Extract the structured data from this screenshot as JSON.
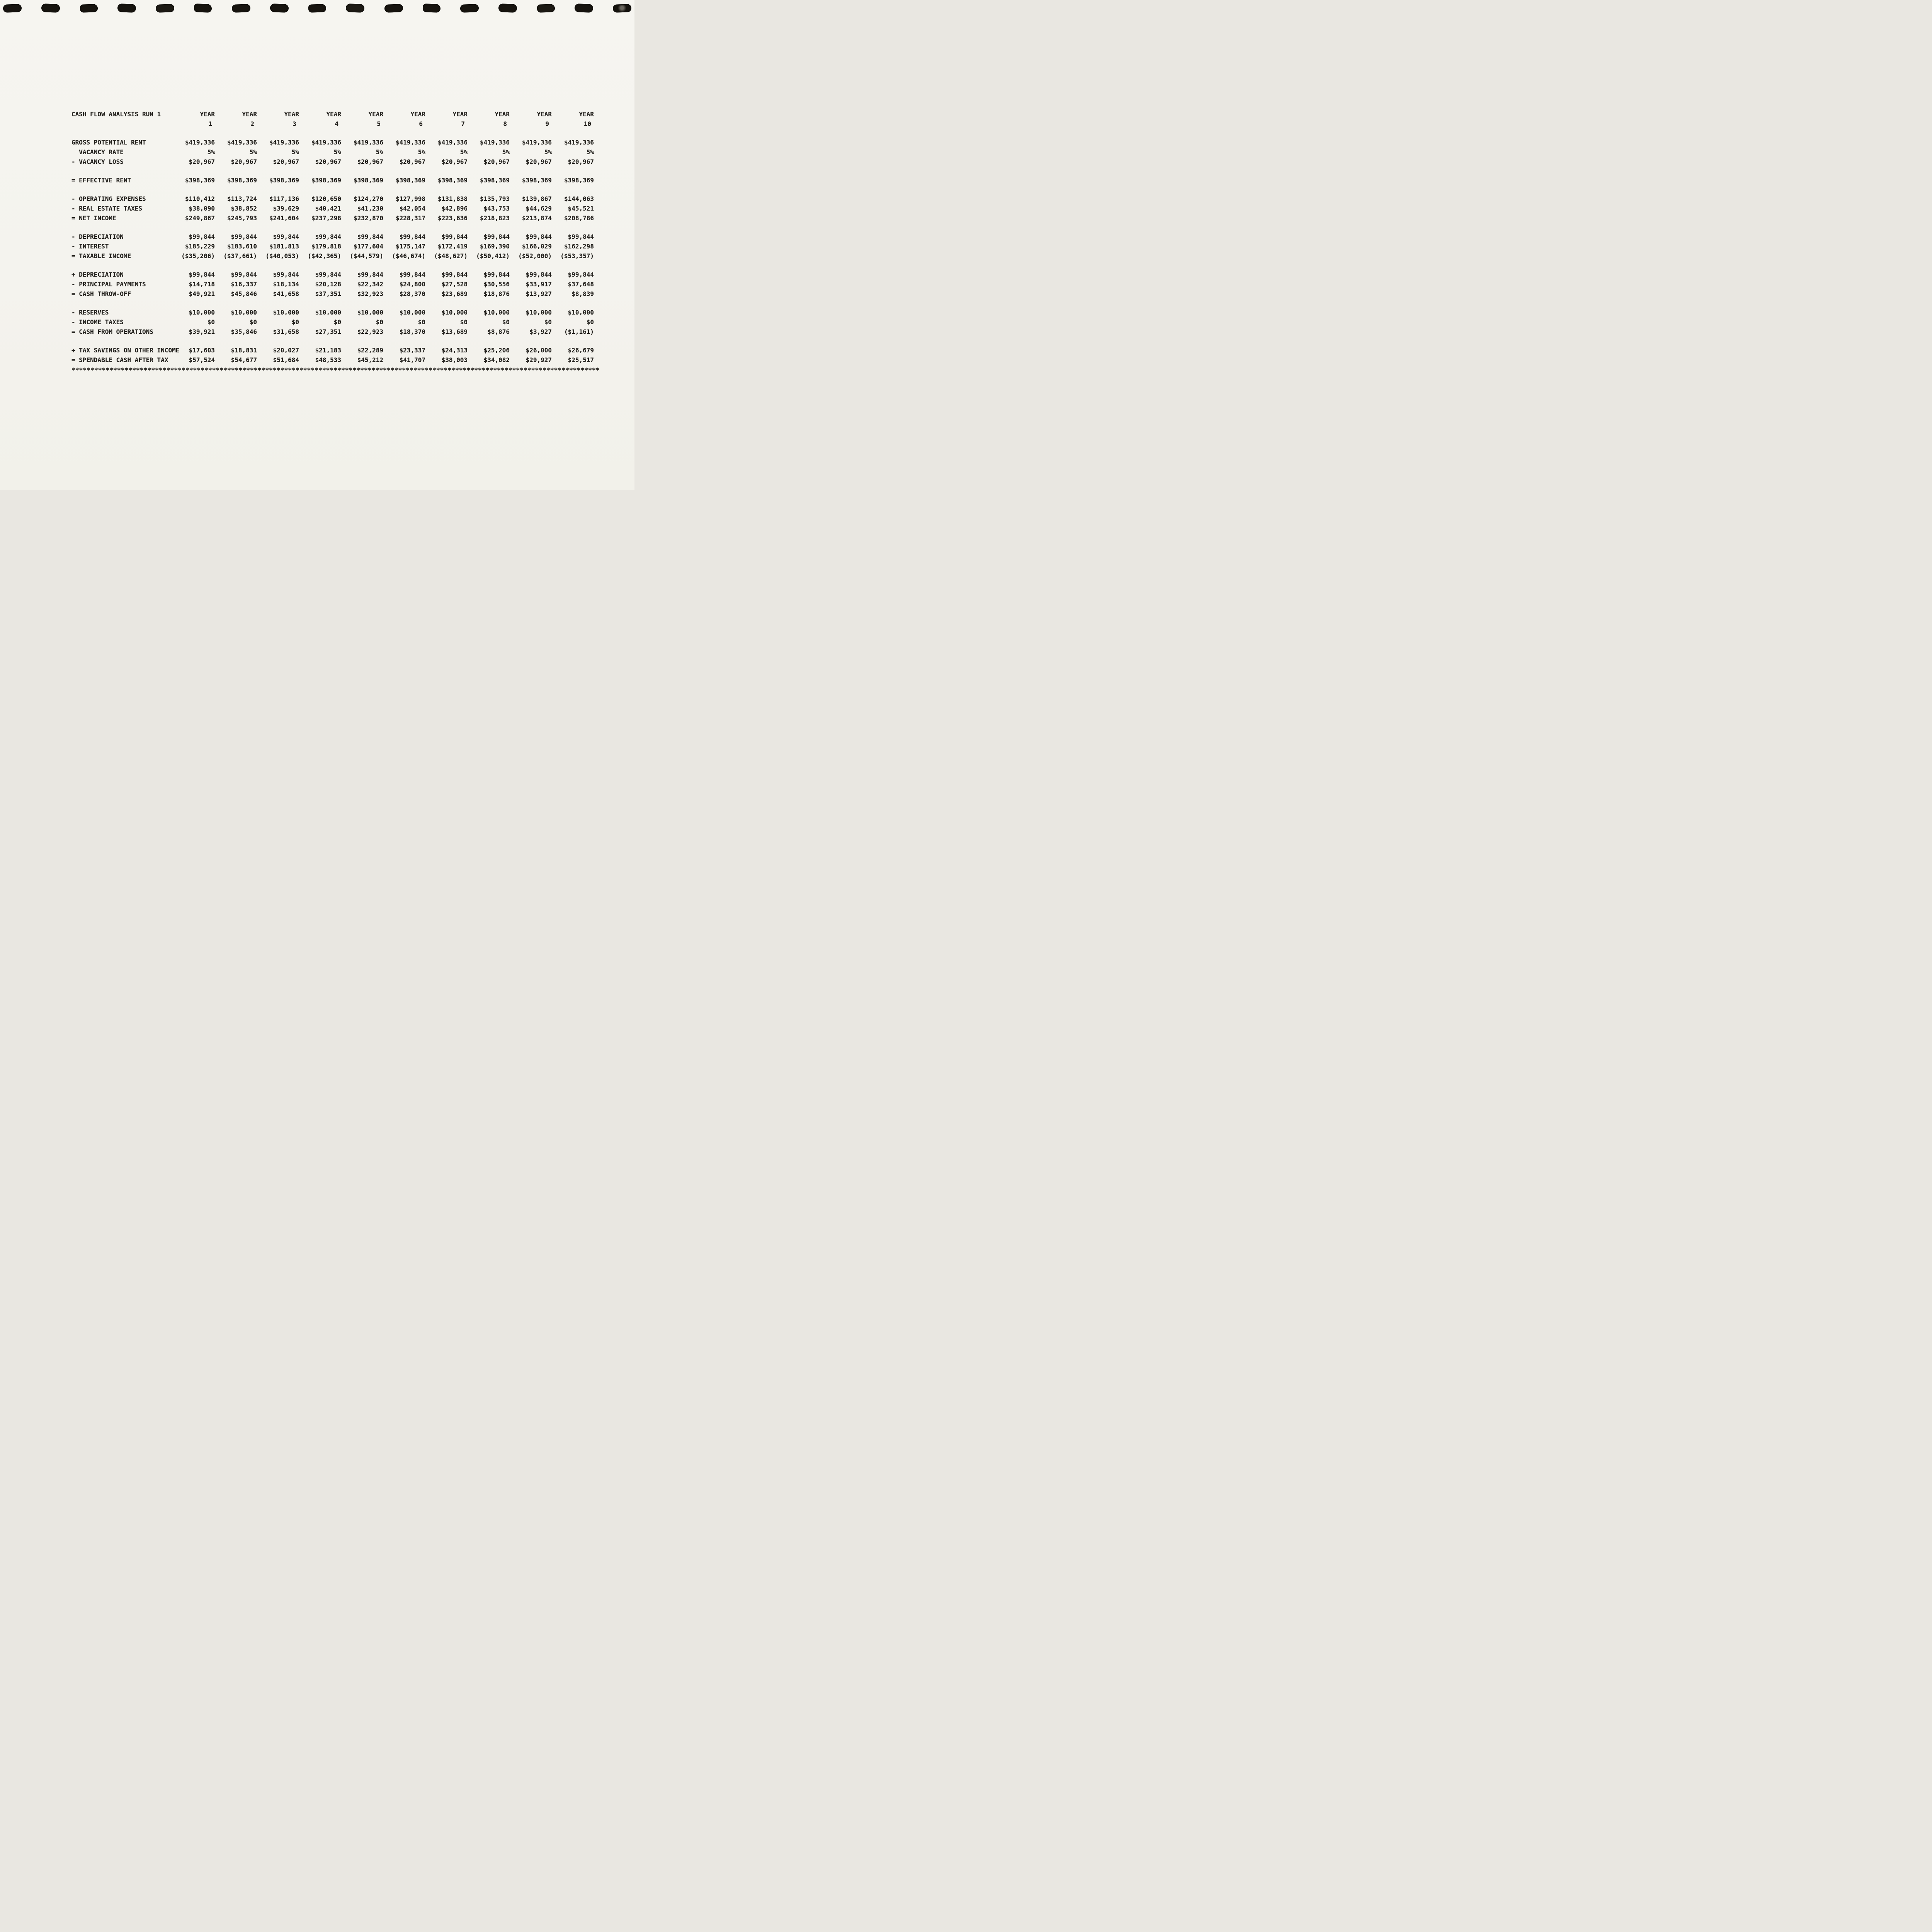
{
  "report": {
    "title": "CASH FLOW ANALYSIS RUN 1",
    "year_label": "YEAR",
    "years": [
      "1",
      "2",
      "3",
      "4",
      "5",
      "6",
      "7",
      "8",
      "9",
      "10"
    ],
    "rows": [
      {
        "label": "GROSS POTENTIAL RENT",
        "gap": true,
        "values": [
          "$419,336",
          "$419,336",
          "$419,336",
          "$419,336",
          "$419,336",
          "$419,336",
          "$419,336",
          "$419,336",
          "$419,336",
          "$419,336"
        ]
      },
      {
        "label": "  VACANCY RATE",
        "values": [
          "5%",
          "5%",
          "5%",
          "5%",
          "5%",
          "5%",
          "5%",
          "5%",
          "5%",
          "5%"
        ]
      },
      {
        "label": "- VACANCY LOSS",
        "values": [
          "$20,967",
          "$20,967",
          "$20,967",
          "$20,967",
          "$20,967",
          "$20,967",
          "$20,967",
          "$20,967",
          "$20,967",
          "$20,967"
        ]
      },
      {
        "label": "= EFFECTIVE RENT",
        "gap": true,
        "values": [
          "$398,369",
          "$398,369",
          "$398,369",
          "$398,369",
          "$398,369",
          "$398,369",
          "$398,369",
          "$398,369",
          "$398,369",
          "$398,369"
        ]
      },
      {
        "label": "- OPERATING EXPENSES",
        "gap": true,
        "values": [
          "$110,412",
          "$113,724",
          "$117,136",
          "$120,650",
          "$124,270",
          "$127,998",
          "$131,838",
          "$135,793",
          "$139,867",
          "$144,063"
        ]
      },
      {
        "label": "- REAL ESTATE TAXES",
        "values": [
          "$38,090",
          "$38,852",
          "$39,629",
          "$40,421",
          "$41,230",
          "$42,054",
          "$42,896",
          "$43,753",
          "$44,629",
          "$45,521"
        ]
      },
      {
        "label": "= NET INCOME",
        "values": [
          "$249,867",
          "$245,793",
          "$241,604",
          "$237,298",
          "$232,870",
          "$228,317",
          "$223,636",
          "$218,823",
          "$213,874",
          "$208,786"
        ]
      },
      {
        "label": "- DEPRECIATION",
        "gap": true,
        "values": [
          "$99,844",
          "$99,844",
          "$99,844",
          "$99,844",
          "$99,844",
          "$99,844",
          "$99,844",
          "$99,844",
          "$99,844",
          "$99,844"
        ]
      },
      {
        "label": "- INTEREST",
        "values": [
          "$185,229",
          "$183,610",
          "$181,813",
          "$179,818",
          "$177,604",
          "$175,147",
          "$172,419",
          "$169,390",
          "$166,029",
          "$162,298"
        ]
      },
      {
        "label": "= TAXABLE INCOME",
        "values": [
          "($35,206)",
          "($37,661)",
          "($40,053)",
          "($42,365)",
          "($44,579)",
          "($46,674)",
          "($48,627)",
          "($50,412)",
          "($52,000)",
          "($53,357)"
        ]
      },
      {
        "label": "+ DEPRECIATION",
        "gap": true,
        "values": [
          "$99,844",
          "$99,844",
          "$99,844",
          "$99,844",
          "$99,844",
          "$99,844",
          "$99,844",
          "$99,844",
          "$99,844",
          "$99,844"
        ]
      },
      {
        "label": "- PRINCIPAL PAYMENTS",
        "values": [
          "$14,718",
          "$16,337",
          "$18,134",
          "$20,128",
          "$22,342",
          "$24,800",
          "$27,528",
          "$30,556",
          "$33,917",
          "$37,648"
        ]
      },
      {
        "label": "= CASH THROW-OFF",
        "values": [
          "$49,921",
          "$45,846",
          "$41,658",
          "$37,351",
          "$32,923",
          "$28,370",
          "$23,689",
          "$18,876",
          "$13,927",
          "$8,839"
        ]
      },
      {
        "label": "- RESERVES",
        "gap": true,
        "values": [
          "$10,000",
          "$10,000",
          "$10,000",
          "$10,000",
          "$10,000",
          "$10,000",
          "$10,000",
          "$10,000",
          "$10,000",
          "$10,000"
        ]
      },
      {
        "label": "- INCOME TAXES",
        "values": [
          "$0",
          "$0",
          "$0",
          "$0",
          "$0",
          "$0",
          "$0",
          "$0",
          "$0",
          "$0"
        ]
      },
      {
        "label": "= CASH FROM OPERATIONS",
        "values": [
          "$39,921",
          "$35,846",
          "$31,658",
          "$27,351",
          "$22,923",
          "$18,370",
          "$13,689",
          "$8,876",
          "$3,927",
          "($1,161)"
        ]
      },
      {
        "label": "+ TAX SAVINGS ON OTHER INCOME",
        "gap": true,
        "values": [
          "$17,603",
          "$18,831",
          "$20,027",
          "$21,183",
          "$22,289",
          "$23,337",
          "$24,313",
          "$25,206",
          "$26,000",
          "$26,679"
        ]
      },
      {
        "label": "= SPENDABLE CASH AFTER TAX",
        "values": [
          "$57,524",
          "$54,677",
          "$51,684",
          "$48,533",
          "$45,212",
          "$41,707",
          "$38,003",
          "$34,082",
          "$29,927",
          "$25,517"
        ]
      }
    ],
    "separator": "********************************************************************************************************************************************"
  },
  "binding": {
    "hole_count": 17
  }
}
